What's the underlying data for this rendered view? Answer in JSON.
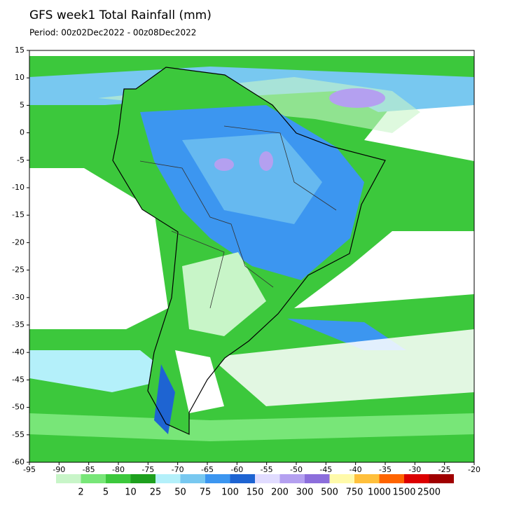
{
  "title": "GFS week1 Total Rainfall (mm)",
  "period": "Period: 00z02Dec2022 - 00z08Dec2022",
  "map": {
    "xlim": [
      -95,
      -20
    ],
    "ylim": [
      -60,
      15
    ],
    "xticks": [
      -95,
      -90,
      -85,
      -80,
      -75,
      -70,
      -65,
      -60,
      -55,
      -50,
      -45,
      -40,
      -35,
      -30,
      -25,
      -20
    ],
    "yticks": [
      15,
      10,
      5,
      0,
      -5,
      -10,
      -15,
      -20,
      -25,
      -30,
      -35,
      -40,
      -45,
      -50,
      -55,
      -60
    ]
  },
  "colorbar": {
    "levels": [
      2,
      5,
      10,
      25,
      50,
      75,
      100,
      150,
      200,
      300,
      500,
      750,
      1000,
      1500,
      2500
    ],
    "colors": [
      "#c8f5c8",
      "#78e678",
      "#3cc83c",
      "#1ea01e",
      "#b4f0fa",
      "#78c8f0",
      "#3c96f0",
      "#1e64d2",
      "#e1dcff",
      "#b4a0f0",
      "#8c6edc",
      "#fffaaa",
      "#ffc03c",
      "#ff6400",
      "#dc0000",
      "#a00000"
    ]
  }
}
